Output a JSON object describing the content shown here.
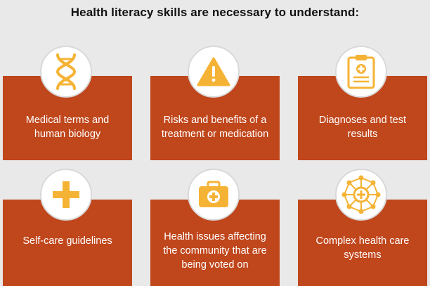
{
  "title": "Health literacy skills are necessary to understand:",
  "accent_color": "#c0461b",
  "icon_color": "#f5b335",
  "cards": [
    {
      "icon": "dna-icon",
      "text": "Medical terms and\nhuman biology"
    },
    {
      "icon": "warning-icon",
      "text": "Risks and benefits of a\ntreatment or medication"
    },
    {
      "icon": "clipboard-icon",
      "text": "Diagnoses and test\nresults"
    },
    {
      "icon": "plus-icon",
      "text": "Self-care guidelines"
    },
    {
      "icon": "first-aid-kit-icon",
      "text": "Health issues affecting\nthe community that are\nbeing voted on"
    },
    {
      "icon": "network-icon",
      "text": "Complex health care\nsystems"
    }
  ]
}
